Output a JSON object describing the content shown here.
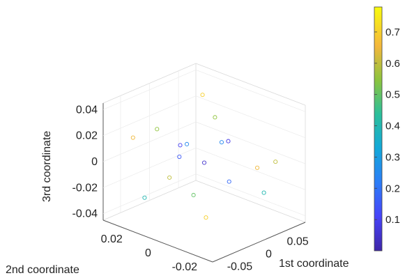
{
  "chart_data": {
    "type": "scatter",
    "projection": "3d",
    "title": "",
    "xlabel": "1st coordinate",
    "ylabel": "2nd coordinate",
    "zlabel": "3rd coordinate",
    "xlim": [
      -0.08,
      0.08
    ],
    "ylim": [
      -0.03,
      0.03
    ],
    "zlim": [
      -0.045,
      0.045
    ],
    "x_ticks": [
      {
        "value": -0.05,
        "label": "-0.05"
      },
      {
        "value": 0,
        "label": "0"
      },
      {
        "value": 0.05,
        "label": "0.05"
      }
    ],
    "y_ticks": [
      {
        "value": -0.02,
        "label": "-0.02"
      },
      {
        "value": 0,
        "label": "0"
      },
      {
        "value": 0.02,
        "label": "0.02"
      }
    ],
    "z_ticks": [
      {
        "value": -0.04,
        "label": "-0.04"
      },
      {
        "value": -0.02,
        "label": "-0.02"
      },
      {
        "value": 0,
        "label": "0"
      },
      {
        "value": 0.02,
        "label": "0.02"
      },
      {
        "value": 0.04,
        "label": "0.04"
      }
    ],
    "grid": true,
    "marker": "open-circle",
    "colormap": "parula",
    "colorbar": {
      "limits": [
        0,
        0.78
      ],
      "ticks": [
        {
          "value": 0.1,
          "label": "0.1"
        },
        {
          "value": 0.2,
          "label": "0.2"
        },
        {
          "value": 0.3,
          "label": "0.3"
        },
        {
          "value": 0.4,
          "label": "0.4"
        },
        {
          "value": 0.5,
          "label": "0.5"
        },
        {
          "value": 0.6,
          "label": "0.6"
        },
        {
          "value": 0.7,
          "label": "0.7"
        }
      ]
    },
    "points": [
      [
        -0.06,
        0.02,
        0.02,
        0.65
      ],
      [
        -0.06,
        0.0,
        0.0,
        0.6
      ],
      [
        -0.06,
        -0.02,
        -0.02,
        0.7
      ],
      [
        -0.05,
        0.01,
        0.03,
        0.55
      ],
      [
        -0.05,
        -0.01,
        -0.01,
        0.5
      ],
      [
        -0.04,
        0.02,
        -0.03,
        0.4
      ],
      [
        -0.03,
        0.0,
        0.02,
        0.25
      ],
      [
        -0.02,
        -0.02,
        0.0,
        0.18
      ],
      [
        -0.01,
        0.01,
        0.01,
        0.1
      ],
      [
        0.0,
        0.0,
        0.0,
        0.05
      ],
      [
        0.01,
        -0.01,
        0.02,
        0.08
      ],
      [
        0.02,
        0.02,
        -0.01,
        0.15
      ],
      [
        0.03,
        0.0,
        0.01,
        0.25
      ],
      [
        0.04,
        -0.02,
        -0.02,
        0.4
      ],
      [
        0.05,
        0.01,
        0.02,
        0.55
      ],
      [
        0.06,
        -0.01,
        -0.01,
        0.65
      ],
      [
        0.06,
        0.02,
        0.03,
        0.7
      ],
      [
        0.06,
        -0.02,
        0.0,
        0.6
      ]
    ]
  }
}
